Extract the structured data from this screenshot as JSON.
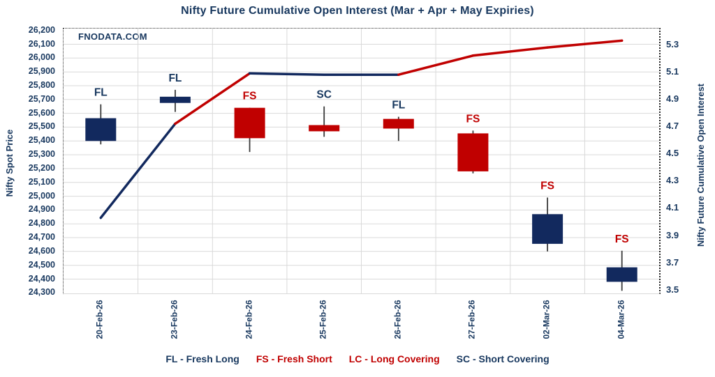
{
  "watermark": "FNODATA.COM",
  "chart_data": {
    "type": "candlestick+line",
    "title": "Nifty Future Cumulative Open Interest (Mar + Apr + May Expiries)",
    "categories": [
      "20-Feb-26",
      "23-Feb-26",
      "24-Feb-26",
      "25-Feb-26",
      "26-Feb-26",
      "27-Feb-26",
      "02-Mar-26",
      "04-Mar-26"
    ],
    "series": [
      {
        "name": "Nifty Spot Price",
        "type": "candlestick",
        "points": [
          {
            "date": "20-Feb-26",
            "open": 25400,
            "high": 25665,
            "low": 25375,
            "close": 25565,
            "color": "navy",
            "label": "FL",
            "label_color": "navy"
          },
          {
            "date": "23-Feb-26",
            "open": 25675,
            "high": 25770,
            "low": 25610,
            "close": 25720,
            "color": "navy",
            "label": "FL",
            "label_color": "navy"
          },
          {
            "date": "24-Feb-26",
            "open": 25640,
            "high": 25640,
            "low": 25320,
            "close": 25420,
            "color": "red",
            "label": "FS",
            "label_color": "red"
          },
          {
            "date": "25-Feb-26",
            "open": 25515,
            "high": 25650,
            "low": 25430,
            "close": 25470,
            "color": "red",
            "label": "SC",
            "label_color": "navy"
          },
          {
            "date": "26-Feb-26",
            "open": 25560,
            "high": 25575,
            "low": 25400,
            "close": 25490,
            "color": "red",
            "label": "FL",
            "label_color": "navy"
          },
          {
            "date": "27-Feb-26",
            "open": 25455,
            "high": 25475,
            "low": 25165,
            "close": 25180,
            "color": "red",
            "label": "FS",
            "label_color": "red"
          },
          {
            "date": "02-Mar-26",
            "open": 24655,
            "high": 24990,
            "low": 24600,
            "close": 24870,
            "color": "navy",
            "label": "FS",
            "label_color": "red"
          },
          {
            "date": "04-Mar-26",
            "open": 24380,
            "high": 24605,
            "low": 24315,
            "close": 24485,
            "color": "navy",
            "label": "FS",
            "label_color": "red"
          }
        ]
      },
      {
        "name": "Nifty Future Cumulative Open Interest",
        "type": "line",
        "values": [
          4.03,
          4.72,
          5.09,
          5.08,
          5.08,
          5.22,
          5.28,
          5.33
        ],
        "segment_colors": [
          "navy",
          "red",
          "navy",
          "navy",
          "red",
          "red",
          "red"
        ]
      }
    ],
    "y_left": {
      "label": "Nifty Spot Price",
      "min": 24300,
      "max": 26200,
      "step": 100,
      "ticks": [
        "26,200",
        "26,100",
        "26,000",
        "25,900",
        "25,800",
        "25,700",
        "25,600",
        "25,500",
        "25,400",
        "25,300",
        "25,200",
        "25,100",
        "25,000",
        "24,900",
        "24,800",
        "24,700",
        "24,600",
        "24,500",
        "24,400",
        "24,300"
      ]
    },
    "y_right": {
      "label": "Nifty Future Cumulative Open Interest",
      "min": 3.5,
      "max": 5.3,
      "step": 0.2,
      "ticks": [
        "5.3",
        "5.1",
        "4.9",
        "4.7",
        "4.5",
        "4.3",
        "4.1",
        "3.9",
        "3.7",
        "3.5"
      ]
    },
    "legend": {
      "items": [
        {
          "text": "FL - Fresh Long",
          "color": "navy"
        },
        {
          "text": "FS - Fresh Short",
          "color": "red"
        },
        {
          "text": "LC - Long Covering",
          "color": "red"
        },
        {
          "text": "SC - Short Covering",
          "color": "navy"
        }
      ]
    },
    "palette": {
      "navy": "#12295E",
      "red": "#C00000",
      "text_navy": "#17375E",
      "grid": "#D9D9D9",
      "wick": "#3A3A3A"
    },
    "grid": true,
    "legend_position": "bottom"
  }
}
